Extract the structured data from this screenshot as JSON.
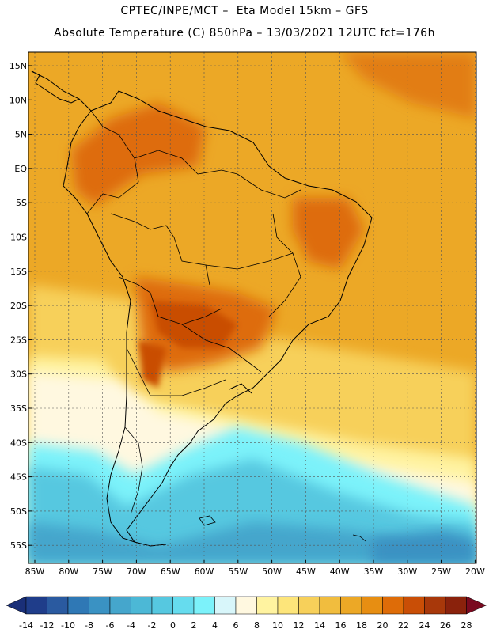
{
  "title_line1": "CPTEC/INPE/MCT –  Eta Model 15km – GFS",
  "title_line2": "Absolute Temperature (C) 850hPa – 13/03/2021 12UTC fct=176h",
  "lat_labels": [
    "15N",
    "10N",
    "5N",
    "EQ",
    "5S",
    "10S",
    "15S",
    "20S",
    "25S",
    "30S",
    "35S",
    "40S",
    "45S",
    "50S",
    "55S"
  ],
  "lon_labels": [
    "85W",
    "80W",
    "75W",
    "70W",
    "65W",
    "60W",
    "55W",
    "50W",
    "45W",
    "40W",
    "35W",
    "30W",
    "25W",
    "20W"
  ],
  "colorbar": {
    "labels": [
      "-14",
      "-12",
      "-10",
      "-8",
      "-6",
      "-4",
      "-2",
      "0",
      "2",
      "4",
      "6",
      "8",
      "10",
      "12",
      "14",
      "16",
      "18",
      "20",
      "22",
      "24",
      "26",
      "28"
    ],
    "colors": [
      "#1f3d8a",
      "#2a5aa0",
      "#2f78b5",
      "#3a92c3",
      "#45a6cc",
      "#4cb8d6",
      "#56c8e0",
      "#66dcee",
      "#7cf2fa",
      "#d8f6fa",
      "#fff8e0",
      "#fff3a0",
      "#fde57a",
      "#f7d05a",
      "#f1bd3e",
      "#eca826",
      "#e78e12",
      "#de6c08",
      "#c94e06",
      "#a8380a",
      "#8a220c"
    ],
    "low_arrow_color": "#1a2f78",
    "high_arrow_color": "#7a0a20"
  },
  "colors": {
    "ocean_warm": "#eca826",
    "land_hot": "#de6c08",
    "hot_core": "#c94e06",
    "mild": "#f7d05a",
    "cool": "#fff3a0",
    "cold": "#56c8e0",
    "colder": "#3a92c3"
  }
}
